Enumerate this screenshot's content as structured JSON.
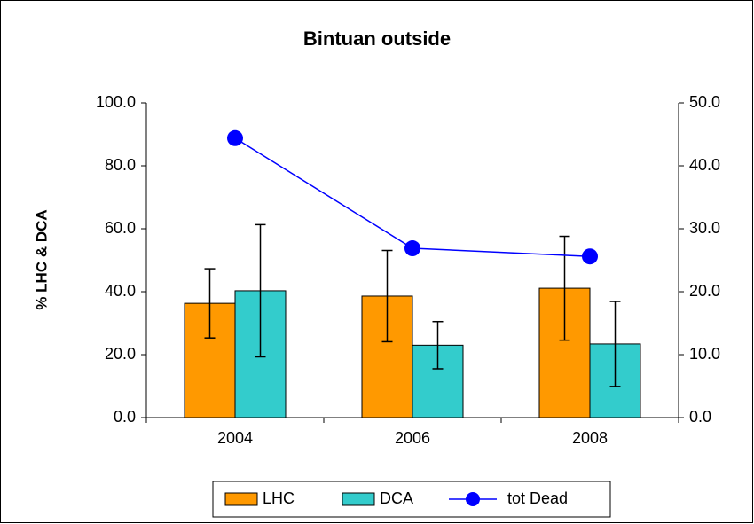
{
  "chart_data": {
    "type": "bar",
    "title": "Bintuan outside",
    "ylabel": "% LHC & DCA",
    "categories": [
      "2004",
      "2006",
      "2008"
    ],
    "series": [
      {
        "name": "LHC",
        "color": "#ff9900",
        "values": [
          36.3,
          38.6,
          41.1
        ],
        "errors": [
          11,
          14.5,
          16.5
        ]
      },
      {
        "name": "DCA",
        "color": "#33cccc",
        "values": [
          40.3,
          23,
          23.4
        ],
        "errors": [
          21,
          7.5,
          13.5
        ]
      },
      {
        "name": "tot Dead",
        "color": "#0000ff",
        "type": "line",
        "axis": "y2",
        "values": [
          44.4,
          26.9,
          25.6
        ]
      }
    ],
    "ylim": [
      0,
      100
    ],
    "yticks": [
      {
        "value": 0,
        "label": "0.0"
      },
      {
        "value": 20,
        "label": "20.0"
      },
      {
        "value": 40,
        "label": "40.0"
      },
      {
        "value": 60,
        "label": "60.0"
      },
      {
        "value": 80,
        "label": "80.0"
      },
      {
        "value": 100,
        "label": "100.0"
      }
    ],
    "y2lim": [
      0,
      50
    ],
    "y2ticks": [
      {
        "value": 0,
        "label": "0.0"
      },
      {
        "value": 10,
        "label": "10.0"
      },
      {
        "value": 20,
        "label": "20.0"
      },
      {
        "value": 30,
        "label": "30.0"
      },
      {
        "value": 40,
        "label": "40.0"
      },
      {
        "value": 50,
        "label": "50.0"
      }
    ],
    "legend": "bottom"
  }
}
